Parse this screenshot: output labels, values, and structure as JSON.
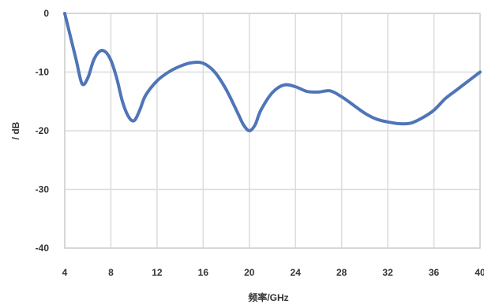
{
  "chart_data": {
    "type": "line",
    "xlabel": "频率/GHz",
    "ylabel": "/ dB",
    "xlim": [
      4,
      40
    ],
    "ylim": [
      -40,
      0
    ],
    "x_ticks": [
      "4",
      "8",
      "12",
      "16",
      "20",
      "24",
      "28",
      "32",
      "36",
      "40"
    ],
    "y_ticks": [
      "0",
      "-10",
      "-20",
      "-30",
      "-40"
    ],
    "grid": true,
    "series": [
      {
        "color": "#4f75b8",
        "x": [
          4,
          4.5,
          5,
          5.5,
          6,
          6.5,
          7,
          7.5,
          8,
          8.5,
          9,
          9.5,
          10,
          10.5,
          11,
          12,
          13,
          14,
          15,
          16,
          17,
          18,
          19,
          19.5,
          20,
          20.5,
          21,
          22,
          23,
          24,
          25,
          26,
          27,
          28,
          29,
          30,
          31,
          32,
          33,
          34,
          35,
          36,
          37,
          38,
          39,
          40
        ],
        "values": [
          0,
          -4,
          -8,
          -12,
          -11,
          -8,
          -6.5,
          -6.5,
          -8,
          -11,
          -15,
          -17.5,
          -18.3,
          -16.5,
          -14,
          -11.5,
          -10,
          -9,
          -8.4,
          -8.5,
          -10,
          -13,
          -17,
          -19,
          -20,
          -19,
          -16.5,
          -13.5,
          -12.2,
          -12.5,
          -13.3,
          -13.4,
          -13.2,
          -14.2,
          -15.6,
          -17,
          -18,
          -18.5,
          -18.8,
          -18.7,
          -17.8,
          -16.5,
          -14.5,
          -13,
          -11.5,
          -10
        ]
      }
    ]
  }
}
